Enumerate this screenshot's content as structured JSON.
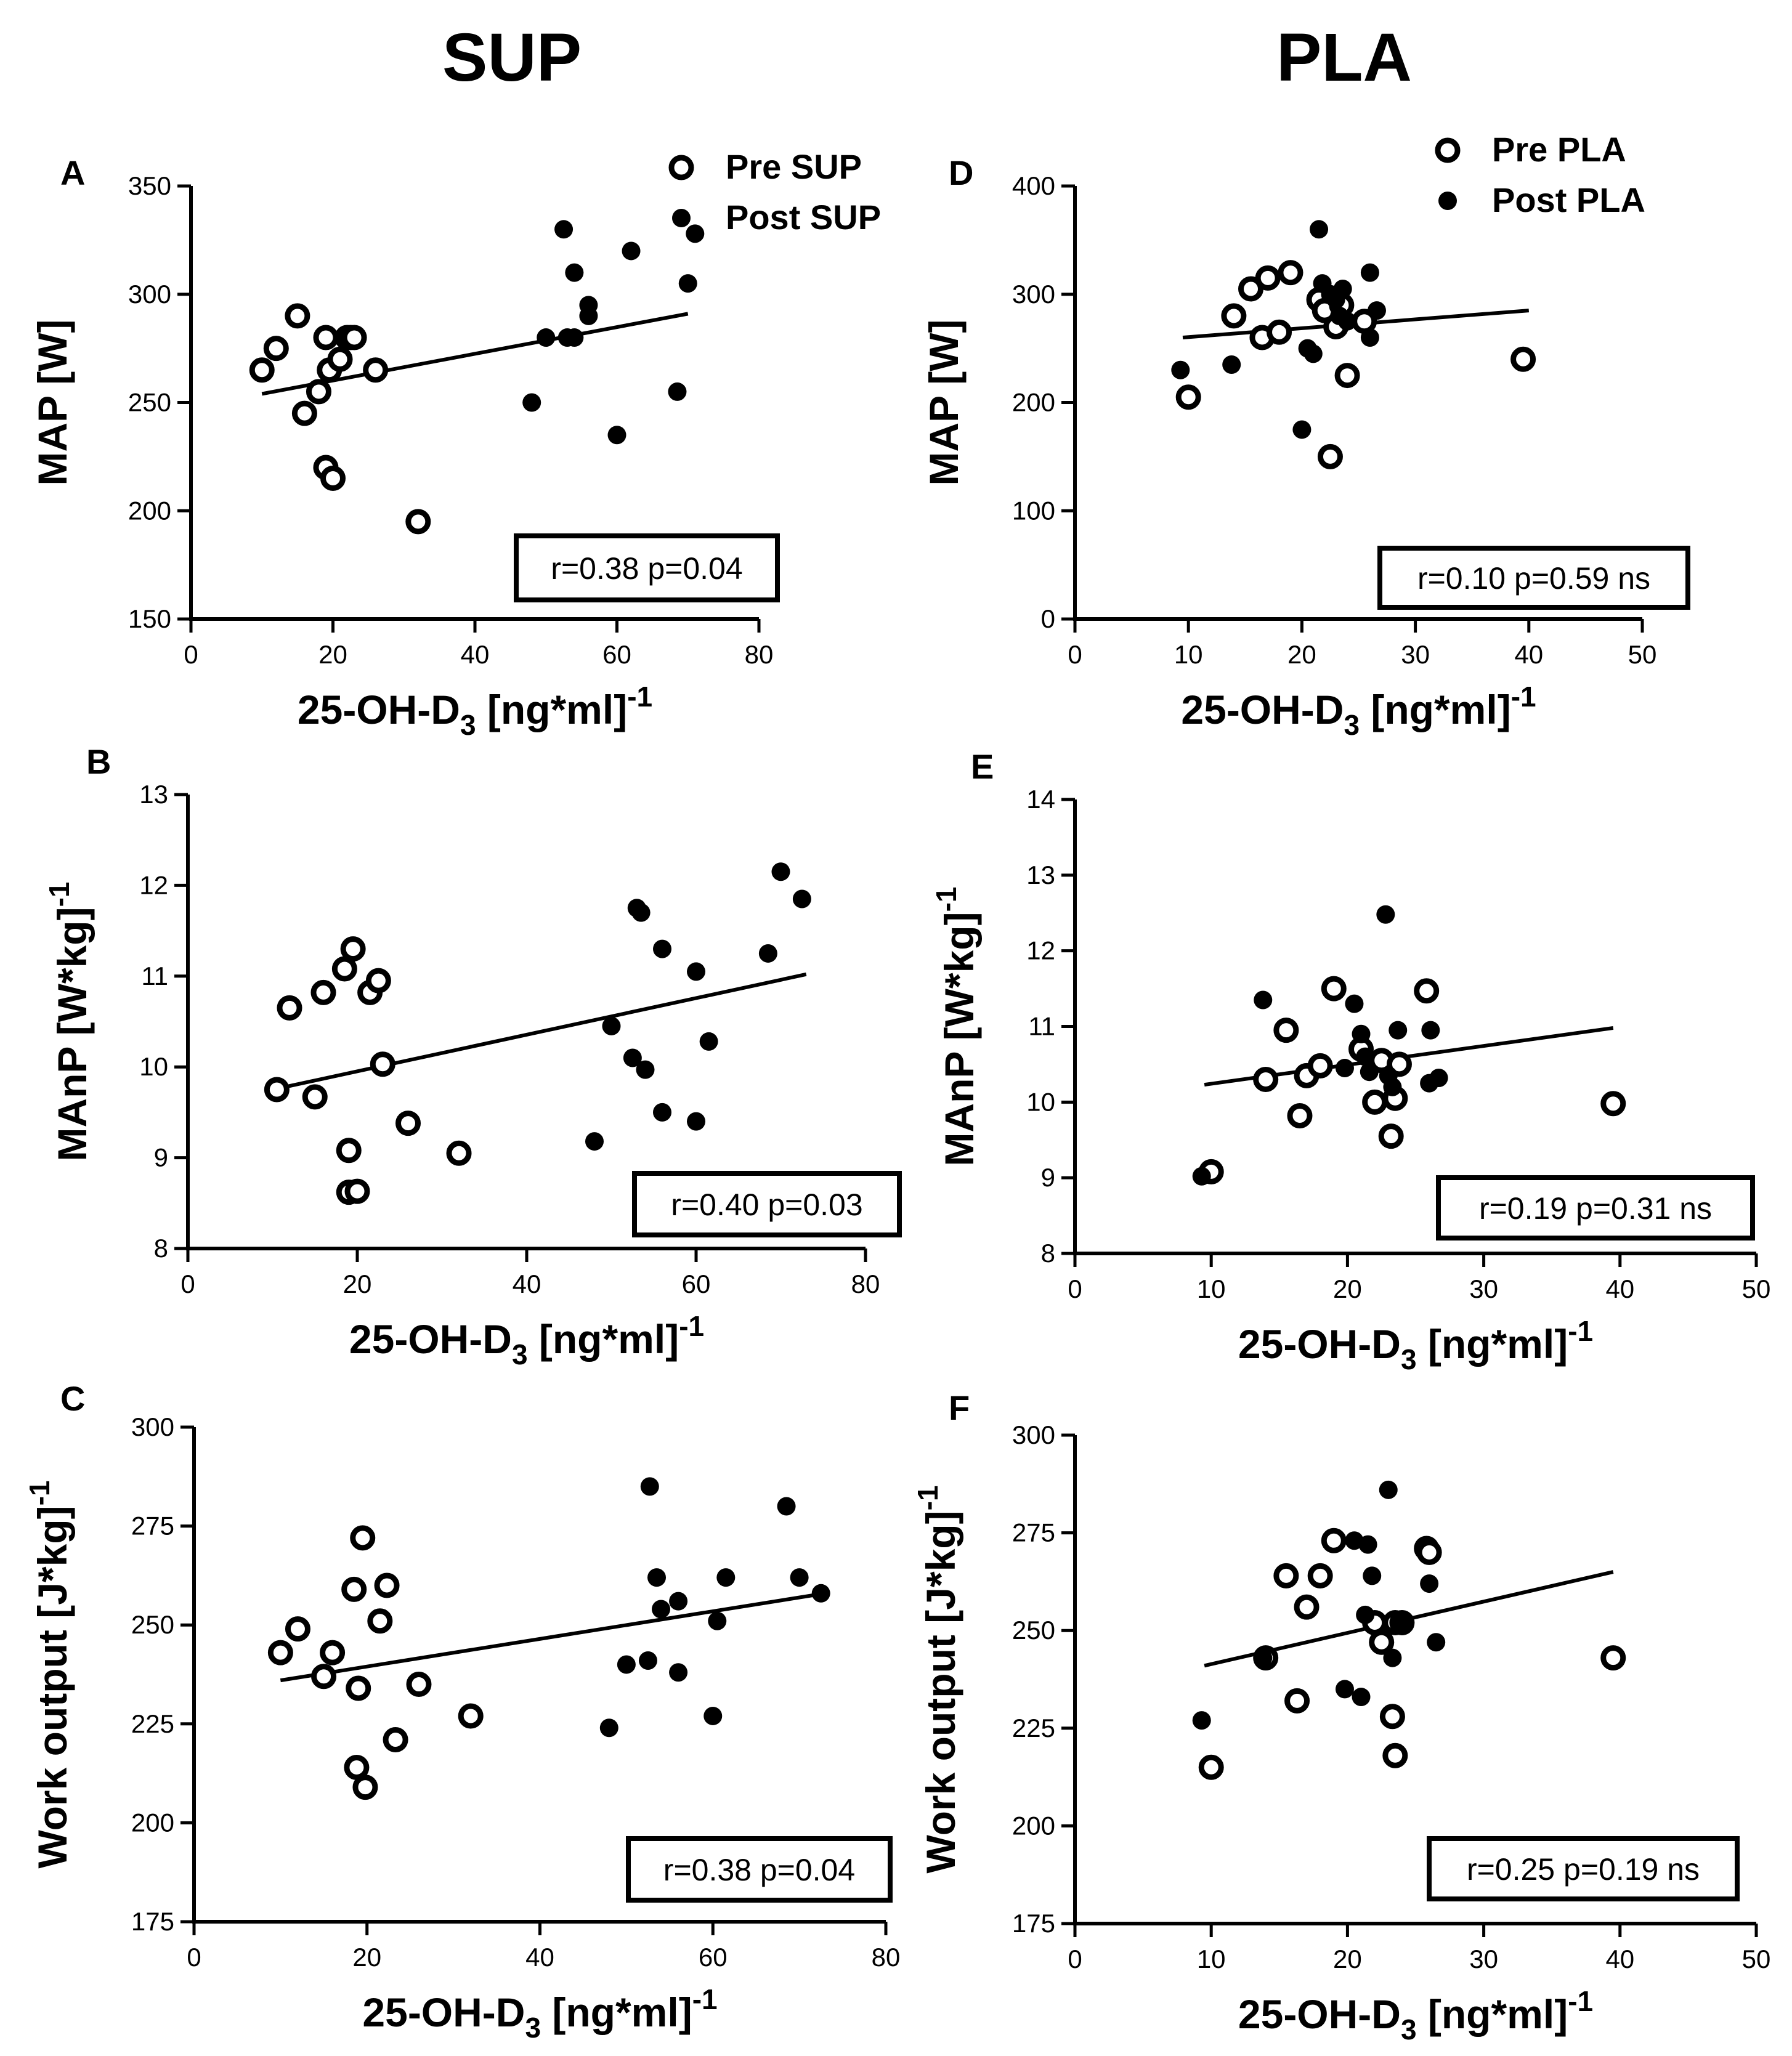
{
  "columns": {
    "left": "SUP",
    "right": "PLA"
  },
  "chart_data": [
    {
      "id": "A",
      "type": "scatter",
      "panel_label": "A",
      "ylabel": "MAP [W]",
      "xlabel_main": "25-OH-D",
      "xlabel_sub": "3",
      "xlabel_tail": " [ng*ml]",
      "xlabel_sup": "-1",
      "xlim": [
        0,
        80
      ],
      "ylim": [
        150,
        350
      ],
      "xticks": [
        0,
        20,
        40,
        60,
        80
      ],
      "yticks": [
        150,
        200,
        250,
        300,
        350
      ],
      "legend": [
        {
          "label": "Pre SUP",
          "marker": "open-circle"
        },
        {
          "label": "Post SUP",
          "marker": "filled-circle"
        }
      ],
      "stat": "r=0.38 p=0.04",
      "fit": {
        "x": [
          10,
          70
        ],
        "y": [
          254,
          291
        ]
      },
      "series": [
        {
          "name": "Pre SUP",
          "marker": "open",
          "x": [
            10,
            12,
            15,
            16,
            18,
            19,
            19,
            19.5,
            20,
            21,
            22,
            22.5,
            23,
            26,
            32
          ],
          "y": [
            265,
            275,
            290,
            245,
            255,
            220,
            280,
            265,
            215,
            270,
            280,
            280,
            280,
            265,
            195
          ]
        },
        {
          "name": "Post SUP",
          "marker": "filled",
          "x": [
            48,
            50,
            52.5,
            53,
            54,
            54,
            56,
            56,
            60,
            62,
            68.5,
            70,
            71
          ],
          "y": [
            250,
            280,
            330,
            280,
            280,
            310,
            290,
            295,
            235,
            320,
            255,
            305,
            328
          ]
        }
      ]
    },
    {
      "id": "D",
      "type": "scatter",
      "panel_label": "D",
      "ylabel": "MAP [W]",
      "xlabel_main": "25-OH-D",
      "xlabel_sub": "3",
      "xlabel_tail": " [ng*ml]",
      "xlabel_sup": "-1",
      "xlim": [
        0,
        50
      ],
      "ylim": [
        0,
        400
      ],
      "xticks": [
        0,
        10,
        20,
        30,
        40,
        50
      ],
      "yticks": [
        0,
        100,
        200,
        300,
        400
      ],
      "legend": [
        {
          "label": "Pre PLA",
          "marker": "open-circle"
        },
        {
          "label": "Post PLA",
          "marker": "filled-circle"
        }
      ],
      "stat": "r=0.10 p=0.59 ns",
      "fit": {
        "x": [
          9.5,
          40
        ],
        "y": [
          260,
          285
        ]
      },
      "series": [
        {
          "name": "Pre PLA",
          "marker": "open",
          "x": [
            10,
            14,
            15.5,
            16.5,
            17,
            18,
            19,
            21.5,
            22,
            22.5,
            23,
            23.5,
            24,
            25.5,
            39.5
          ],
          "y": [
            205,
            280,
            305,
            260,
            315,
            265,
            320,
            295,
            285,
            150,
            270,
            290,
            225,
            275,
            240
          ]
        },
        {
          "name": "Post PLA",
          "marker": "filled",
          "x": [
            9.3,
            13.8,
            20,
            20.5,
            21,
            21.5,
            21.8,
            22.5,
            23,
            23.3,
            23.6,
            24,
            26,
            26,
            26.6
          ],
          "y": [
            230,
            235,
            175,
            250,
            245,
            360,
            310,
            300,
            295,
            280,
            305,
            275,
            260,
            320,
            285
          ]
        }
      ]
    },
    {
      "id": "B",
      "type": "scatter",
      "panel_label": "B",
      "ylabel_main": "MAnP [W*kg]",
      "ylabel_sup": "-1",
      "xlabel_main": "25-OH-D",
      "xlabel_sub": "3",
      "xlabel_tail": " [ng*ml]",
      "xlabel_sup": "-1",
      "xlim": [
        0,
        80
      ],
      "ylim": [
        8,
        13
      ],
      "xticks": [
        0,
        20,
        40,
        60,
        80
      ],
      "yticks": [
        8,
        9,
        10,
        11,
        12,
        13
      ],
      "stat": "r=0.40 p=0.03",
      "fit": {
        "x": [
          10,
          73
        ],
        "y": [
          9.75,
          11.02
        ]
      },
      "series": [
        {
          "name": "Pre SUP",
          "marker": "open",
          "x": [
            10.5,
            12,
            15,
            16,
            18.5,
            19,
            19,
            19.5,
            20,
            21.5,
            22.5,
            23,
            26,
            32
          ],
          "y": [
            9.75,
            10.65,
            9.67,
            10.82,
            11.08,
            9.08,
            8.62,
            11.3,
            8.63,
            10.82,
            10.95,
            10.03,
            9.38,
            9.05
          ]
        },
        {
          "name": "Post SUP",
          "marker": "filled",
          "x": [
            48,
            50,
            52.5,
            53,
            53.5,
            54,
            56,
            56,
            60,
            60,
            61.5,
            68.5,
            70,
            72.5
          ],
          "y": [
            9.18,
            10.45,
            10.1,
            11.75,
            11.7,
            9.97,
            11.3,
            9.5,
            9.4,
            11.05,
            10.28,
            11.25,
            12.15,
            11.85
          ]
        }
      ]
    },
    {
      "id": "E",
      "type": "scatter",
      "panel_label": "E",
      "ylabel_main": "MAnP [W*kg]",
      "ylabel_sup": "-1",
      "xlabel_main": "25-OH-D",
      "xlabel_sub": "3",
      "xlabel_tail": " [ng*ml]",
      "xlabel_sup": "-1",
      "xlim": [
        0,
        50
      ],
      "ylim": [
        8,
        14
      ],
      "xticks": [
        0,
        10,
        20,
        30,
        40,
        50
      ],
      "yticks": [
        8,
        9,
        10,
        11,
        12,
        13,
        14
      ],
      "stat": "r=0.19 p=0.31 ns",
      "fit": {
        "x": [
          9.5,
          39.5
        ],
        "y": [
          10.23,
          10.98
        ]
      },
      "series": [
        {
          "name": "Pre PLA",
          "marker": "open",
          "x": [
            10,
            14,
            15.5,
            16.5,
            17,
            18,
            19,
            21,
            22,
            22.5,
            23.5,
            23.8,
            23.2,
            25.8,
            39.5
          ],
          "y": [
            9.08,
            10.3,
            10.95,
            9.82,
            10.35,
            10.48,
            11.5,
            10.7,
            10.0,
            10.55,
            10.05,
            10.5,
            9.55,
            11.47,
            9.98
          ]
        },
        {
          "name": "Post PLA",
          "marker": "filled",
          "x": [
            9.3,
            13.8,
            19.8,
            20.5,
            21,
            21.3,
            21.6,
            22.8,
            23,
            23.3,
            23.7,
            26,
            26.1,
            26.7
          ],
          "y": [
            9.02,
            11.35,
            10.45,
            11.3,
            10.9,
            10.6,
            10.4,
            12.48,
            10.35,
            10.2,
            10.95,
            10.25,
            10.95,
            10.32
          ]
        }
      ]
    },
    {
      "id": "C",
      "type": "scatter",
      "panel_label": "C",
      "ylabel_main": "Work output [J*kg]",
      "ylabel_sup": "-1",
      "xlabel_main": "25-OH-D",
      "xlabel_sub": "3",
      "xlabel_tail": " [ng*ml]",
      "xlabel_sup": "-1",
      "xlim": [
        0,
        80
      ],
      "ylim": [
        175,
        300
      ],
      "xticks": [
        0,
        20,
        40,
        60,
        80
      ],
      "yticks": [
        175,
        200,
        225,
        250,
        275,
        300
      ],
      "stat": "r=0.38 p=0.04",
      "fit": {
        "x": [
          10,
          73
        ],
        "y": [
          236,
          258
        ]
      },
      "series": [
        {
          "name": "Pre SUP",
          "marker": "open",
          "x": [
            10,
            12,
            15,
            16,
            18.5,
            18.8,
            19,
            19.5,
            19.8,
            21.5,
            22.3,
            23.3,
            26,
            32
          ],
          "y": [
            243,
            249,
            237,
            243,
            259,
            214,
            234,
            272,
            209,
            251,
            260,
            221,
            235,
            227
          ]
        },
        {
          "name": "Post SUP",
          "marker": "filled",
          "x": [
            48,
            50,
            52.5,
            52.7,
            53.5,
            54,
            56,
            56,
            60,
            60.5,
            61.5,
            68.5,
            70,
            72.5
          ],
          "y": [
            224,
            240,
            241,
            285,
            262,
            254,
            256,
            238,
            227,
            251,
            262,
            280,
            262,
            258
          ]
        }
      ]
    },
    {
      "id": "F",
      "type": "scatter",
      "panel_label": "F",
      "ylabel_main": "Work output [J*kg]",
      "ylabel_sup": "-1",
      "xlabel_main": "25-OH-D",
      "xlabel_sub": "3",
      "xlabel_tail": " [ng*ml]",
      "xlabel_sup": "-1",
      "xlim": [
        0,
        50
      ],
      "ylim": [
        175,
        300
      ],
      "xticks": [
        0,
        10,
        20,
        30,
        40,
        50
      ],
      "yticks": [
        175,
        200,
        225,
        250,
        275,
        300
      ],
      "stat": "r=0.25 p=0.19 ns",
      "fit": {
        "x": [
          9.5,
          39.5
        ],
        "y": [
          241,
          265
        ]
      },
      "series": [
        {
          "name": "Pre PLA",
          "marker": "open",
          "x": [
            10,
            14,
            15.5,
            16.3,
            17,
            18,
            19,
            22,
            22.5,
            23.3,
            23.5,
            23.5,
            24,
            25.8,
            26,
            39.5
          ],
          "y": [
            215,
            243,
            264,
            232,
            256,
            264,
            273,
            252,
            247,
            228,
            218,
            252,
            252,
            271,
            270,
            243
          ]
        },
        {
          "name": "Post PLA",
          "marker": "filled",
          "x": [
            9.3,
            13.8,
            19.8,
            20.5,
            21,
            21.3,
            21.5,
            21.8,
            23,
            23.3,
            24,
            26,
            26.5
          ],
          "y": [
            227,
            243,
            235,
            273,
            233,
            254,
            272,
            264,
            286,
            243,
            252,
            262,
            247
          ]
        }
      ]
    }
  ]
}
